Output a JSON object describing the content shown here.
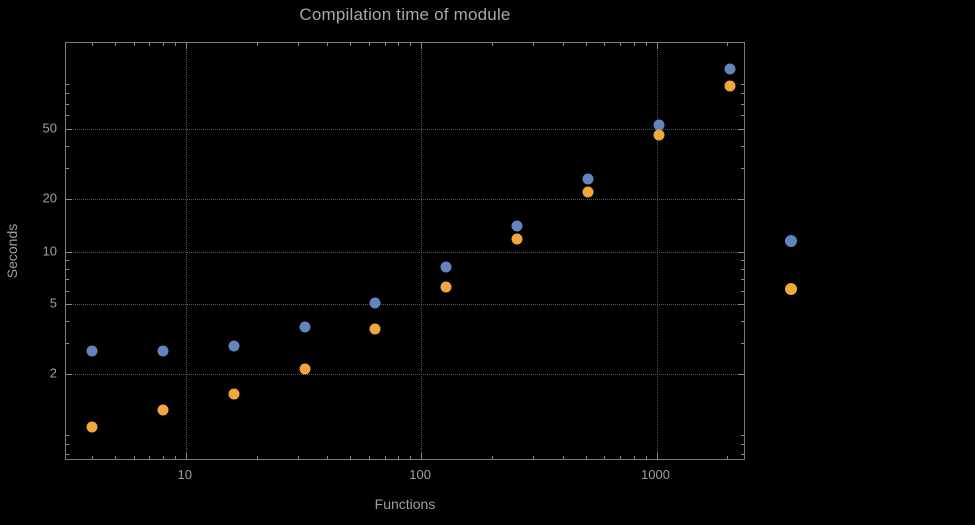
{
  "chart_data": {
    "type": "scatter",
    "title": "Compilation time of module",
    "xlabel": "Functions",
    "ylabel": "Seconds",
    "xscale": "log",
    "yscale": "log",
    "xlim": [
      3.1,
      2400
    ],
    "ylim": [
      0.64,
      155
    ],
    "xticks": [
      10,
      100,
      1000
    ],
    "xtick_labels": [
      "10",
      "100",
      "1000"
    ],
    "yticks": [
      2,
      5,
      10,
      20,
      50
    ],
    "ytick_labels": [
      "2",
      "5",
      "10",
      "20",
      "50"
    ],
    "grid": true,
    "legend_position": "right",
    "background_color": "#000000",
    "frame_color": "#7a7a7a",
    "grid_color": "#575757",
    "text_color": "#9f9f9f",
    "x": [
      4,
      8,
      16,
      32,
      64,
      128,
      256,
      512,
      1024,
      2048
    ],
    "series": [
      {
        "label": "",
        "color": "#6285bf",
        "values": [
          2.7,
          2.7,
          2.9,
          3.7,
          5.1,
          8.2,
          14,
          26,
          53,
          110
        ]
      },
      {
        "label": "",
        "color": "#f0a73e",
        "values": [
          1.0,
          1.25,
          1.55,
          2.15,
          3.6,
          6.3,
          11.8,
          22,
          46,
          88
        ]
      }
    ]
  }
}
